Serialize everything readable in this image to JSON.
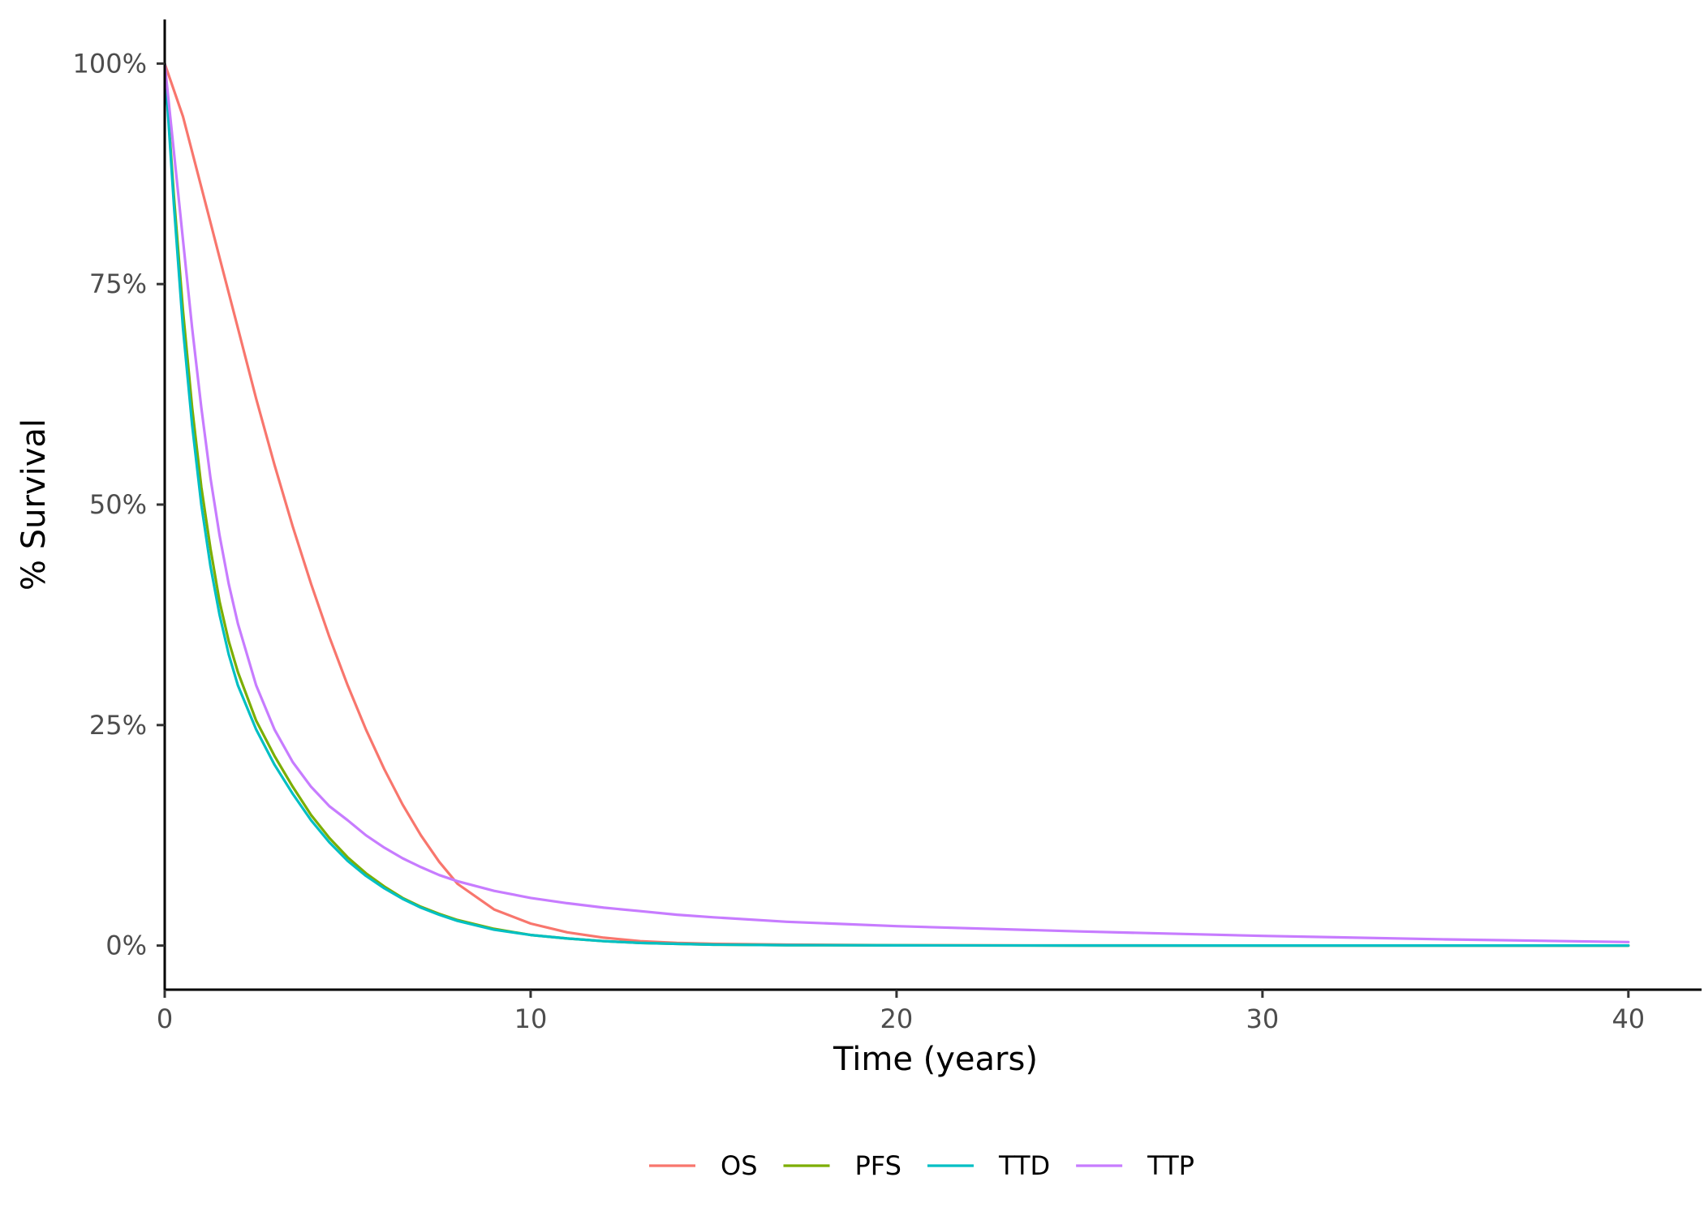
{
  "chart_data": {
    "type": "line",
    "xlabel": "Time (years)",
    "ylabel": "% Survival",
    "xlim": [
      0,
      42
    ],
    "ylim": [
      -0.05,
      1.05
    ],
    "x_ticks": [
      0,
      10,
      20,
      30,
      40
    ],
    "x_tick_labels": [
      "0",
      "10",
      "20",
      "30",
      "40"
    ],
    "y_ticks": [
      0,
      0.25,
      0.5,
      0.75,
      1.0
    ],
    "y_tick_labels": [
      "0%",
      "25%",
      "50%",
      "75%",
      "100%"
    ],
    "grid": false,
    "legend_position": "bottom",
    "series": [
      {
        "name": "OS",
        "color": "#F8766D",
        "points": [
          [
            0,
            1.0
          ],
          [
            0.5,
            0.94
          ],
          [
            1,
            0.86
          ],
          [
            1.5,
            0.78
          ],
          [
            2,
            0.7
          ],
          [
            2.5,
            0.62
          ],
          [
            3,
            0.545
          ],
          [
            3.5,
            0.475
          ],
          [
            4,
            0.41
          ],
          [
            4.5,
            0.35
          ],
          [
            5,
            0.295
          ],
          [
            5.5,
            0.245
          ],
          [
            6,
            0.2
          ],
          [
            6.5,
            0.16
          ],
          [
            7,
            0.125
          ],
          [
            7.5,
            0.095
          ],
          [
            8,
            0.07
          ],
          [
            9,
            0.041
          ],
          [
            10,
            0.025
          ],
          [
            11,
            0.015
          ],
          [
            12,
            0.009
          ],
          [
            13,
            0.005
          ],
          [
            14,
            0.003
          ],
          [
            15,
            0.002
          ],
          [
            17,
            0.001
          ],
          [
            20,
            0.0004
          ],
          [
            25,
            0.0001
          ],
          [
            30,
            0.0
          ],
          [
            35,
            0.0
          ],
          [
            40,
            0.0
          ]
        ]
      },
      {
        "name": "PFS",
        "color": "#7CAE00",
        "points": [
          [
            0,
            1.0
          ],
          [
            0.25,
            0.85
          ],
          [
            0.5,
            0.72
          ],
          [
            0.75,
            0.61
          ],
          [
            1,
            0.52
          ],
          [
            1.25,
            0.45
          ],
          [
            1.5,
            0.39
          ],
          [
            1.75,
            0.345
          ],
          [
            2,
            0.31
          ],
          [
            2.5,
            0.255
          ],
          [
            3,
            0.215
          ],
          [
            3.5,
            0.18
          ],
          [
            4,
            0.148
          ],
          [
            4.5,
            0.122
          ],
          [
            5,
            0.1
          ],
          [
            5.5,
            0.082
          ],
          [
            6,
            0.067
          ],
          [
            6.5,
            0.054
          ],
          [
            7,
            0.044
          ],
          [
            7.5,
            0.036
          ],
          [
            8,
            0.029
          ],
          [
            9,
            0.019
          ],
          [
            10,
            0.012
          ],
          [
            11,
            0.008
          ],
          [
            12,
            0.005
          ],
          [
            13,
            0.003
          ],
          [
            14,
            0.002
          ],
          [
            15,
            0.001
          ],
          [
            17,
            0.0005
          ],
          [
            20,
            0.0002
          ],
          [
            25,
            0.0
          ],
          [
            30,
            0.0
          ],
          [
            35,
            0.0
          ],
          [
            40,
            0.0
          ]
        ]
      },
      {
        "name": "TTD",
        "color": "#00BFC4",
        "points": [
          [
            0,
            1.0
          ],
          [
            0.25,
            0.84
          ],
          [
            0.5,
            0.7
          ],
          [
            0.75,
            0.59
          ],
          [
            1,
            0.5
          ],
          [
            1.25,
            0.43
          ],
          [
            1.5,
            0.375
          ],
          [
            1.75,
            0.33
          ],
          [
            2,
            0.295
          ],
          [
            2.5,
            0.245
          ],
          [
            3,
            0.205
          ],
          [
            3.5,
            0.172
          ],
          [
            4,
            0.142
          ],
          [
            4.5,
            0.117
          ],
          [
            5,
            0.096
          ],
          [
            5.5,
            0.079
          ],
          [
            6,
            0.065
          ],
          [
            6.5,
            0.053
          ],
          [
            7,
            0.043
          ],
          [
            7.5,
            0.035
          ],
          [
            8,
            0.028
          ],
          [
            9,
            0.018
          ],
          [
            10,
            0.012
          ],
          [
            11,
            0.008
          ],
          [
            12,
            0.005
          ],
          [
            13,
            0.003
          ],
          [
            14,
            0.002
          ],
          [
            15,
            0.001
          ],
          [
            17,
            0.0005
          ],
          [
            20,
            0.0002
          ],
          [
            25,
            0.0
          ],
          [
            30,
            0.0
          ],
          [
            35,
            0.0
          ],
          [
            40,
            0.0
          ]
        ]
      },
      {
        "name": "TTP",
        "color": "#C77CFF",
        "points": [
          [
            0,
            1.0
          ],
          [
            0.25,
            0.9
          ],
          [
            0.5,
            0.8
          ],
          [
            0.75,
            0.7
          ],
          [
            1,
            0.61
          ],
          [
            1.25,
            0.53
          ],
          [
            1.5,
            0.465
          ],
          [
            1.75,
            0.41
          ],
          [
            2,
            0.365
          ],
          [
            2.5,
            0.295
          ],
          [
            3,
            0.245
          ],
          [
            3.5,
            0.208
          ],
          [
            4,
            0.18
          ],
          [
            4.5,
            0.158
          ],
          [
            5,
            0.142
          ],
          [
            5.5,
            0.125
          ],
          [
            6,
            0.111
          ],
          [
            6.5,
            0.099
          ],
          [
            7,
            0.089
          ],
          [
            7.5,
            0.08
          ],
          [
            8,
            0.073
          ],
          [
            9,
            0.062
          ],
          [
            10,
            0.054
          ],
          [
            11,
            0.048
          ],
          [
            12,
            0.043
          ],
          [
            13,
            0.039
          ],
          [
            14,
            0.035
          ],
          [
            15,
            0.032
          ],
          [
            17,
            0.027
          ],
          [
            20,
            0.022
          ],
          [
            25,
            0.016
          ],
          [
            30,
            0.011
          ],
          [
            35,
            0.007
          ],
          [
            40,
            0.004
          ]
        ]
      }
    ]
  }
}
